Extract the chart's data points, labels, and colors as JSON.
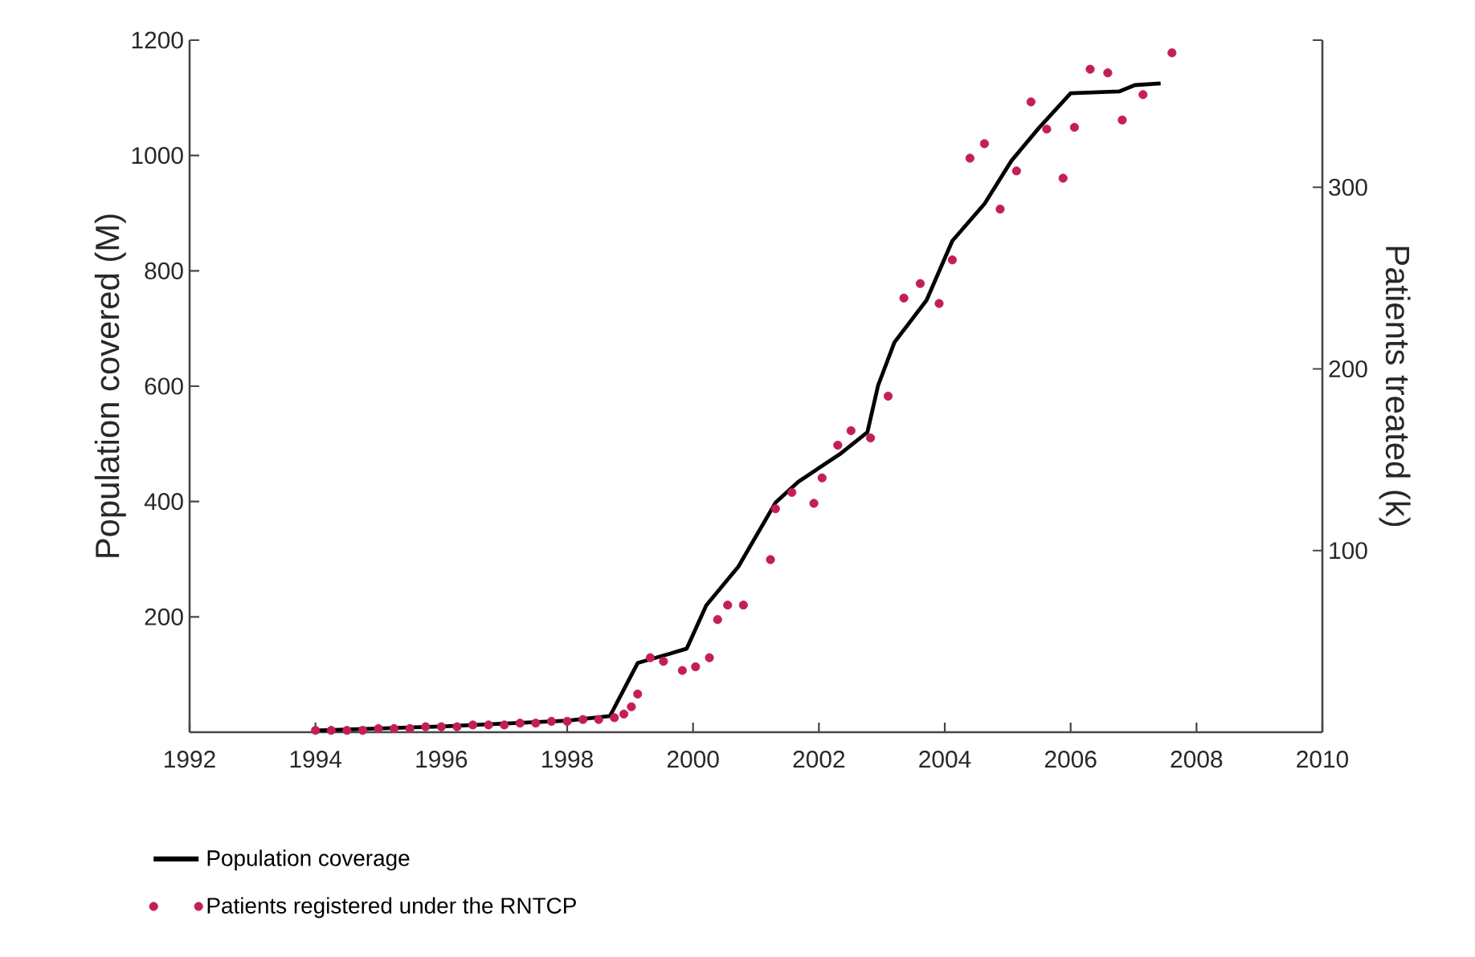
{
  "chart_data": {
    "type": "line",
    "ylabel": "Population covered (M)",
    "y2label": "Patients treated (k)",
    "xlim": [
      1992,
      2010
    ],
    "xticks": [
      1992,
      1994,
      1996,
      1998,
      2000,
      2002,
      2004,
      2006,
      2008,
      2010
    ],
    "ylim": [
      0,
      1200
    ],
    "yticks": [
      200,
      400,
      600,
      800,
      1000,
      1200
    ],
    "y2lim": [
      0,
      381
    ],
    "y2ticks": [
      100,
      200,
      300,
      {
        "value": 381,
        "label": null
      }
    ],
    "legend": "bottom",
    "series": [
      {
        "name": "Population coverage",
        "color": "#000000",
        "x": [
          1994.0,
          1996.0,
          1998.0,
          1998.68,
          1999.12,
          1999.63,
          1999.9,
          2000.21,
          2000.72,
          2001.31,
          2001.67,
          2002.33,
          2002.77,
          2002.94,
          2003.2,
          2003.71,
          2004.12,
          2004.63,
          2005.06,
          2005.49,
          2006.0,
          2006.77,
          2007.02,
          2007.43
        ],
        "values": [
          3,
          10,
          20,
          28,
          120,
          136,
          145,
          220,
          287,
          398,
          434,
          482,
          520,
          601,
          676,
          749,
          852,
          916,
          991,
          1047,
          1108,
          1111,
          1122,
          1125
        ]
      },
      {
        "name": "Patients registered under the RNTCP",
        "type": "scatter",
        "axis": "y2",
        "color": "#c41e5a",
        "marker": "circle",
        "x": [
          1994.0,
          1994.25,
          1994.5,
          1994.75,
          1995.0,
          1995.25,
          1995.5,
          1995.75,
          1996.0,
          1996.25,
          1996.5,
          1996.75,
          1997.0,
          1997.25,
          1997.5,
          1997.75,
          1998.0,
          1998.25,
          1998.5,
          1998.75,
          1998.9,
          1999.02,
          1999.12,
          1999.32,
          1999.53,
          1999.83,
          2000.04,
          2000.26,
          2000.39,
          2000.55,
          2000.8,
          2001.23,
          2001.31,
          2001.57,
          2001.92,
          2002.05,
          2002.3,
          2002.51,
          2002.82,
          2003.1,
          2003.35,
          2003.61,
          2003.91,
          2004.12,
          2004.4,
          2004.63,
          2004.88,
          2005.14,
          2005.37,
          2005.62,
          2005.88,
          2006.06,
          2006.31,
          2006.59,
          2006.82,
          2007.15,
          2007.61
        ],
        "values": [
          1,
          1,
          1,
          1,
          2,
          2,
          2,
          3,
          3,
          3,
          4,
          4,
          4,
          5,
          5,
          6,
          6,
          7,
          7,
          8,
          10,
          14,
          21,
          41,
          39,
          34,
          36,
          41,
          62,
          70,
          70,
          95,
          123,
          132,
          126,
          140,
          158,
          166,
          162,
          185,
          239,
          247,
          236,
          260,
          316,
          324,
          288,
          309,
          347,
          332,
          305,
          333,
          365,
          363,
          337,
          351,
          374
        ]
      }
    ]
  }
}
